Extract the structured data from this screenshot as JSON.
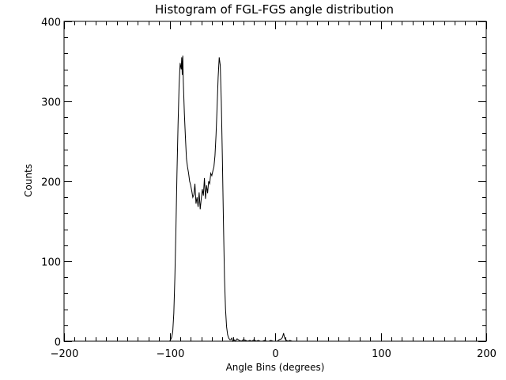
{
  "chart_data": {
    "type": "line",
    "title": "Histogram of FGL-FGS angle distribution",
    "xlabel": "Angle Bins (degrees)",
    "ylabel": "Counts",
    "xlim": [
      -200,
      200
    ],
    "ylim": [
      0,
      400
    ],
    "x_major_ticks": [
      -200,
      -100,
      0,
      100,
      200
    ],
    "x_tick_labels": [
      "−200",
      "−100",
      "0",
      "100",
      "200"
    ],
    "x_minor_step": 10,
    "y_major_ticks": [
      0,
      100,
      200,
      300,
      400
    ],
    "y_tick_labels": [
      "0",
      "100",
      "200",
      "300",
      "400"
    ],
    "y_minor_step": 20,
    "grid": false,
    "legend": "none",
    "series_color": "#000000",
    "x": [
      -200,
      -110,
      -100,
      -99,
      -98,
      -97,
      -96,
      -95,
      -94,
      -93,
      -92,
      -91,
      -90,
      -89,
      -88.5,
      -88,
      -87.5,
      -87,
      -86,
      -85,
      -84,
      -83,
      -82,
      -81,
      -80,
      -79,
      -78,
      -77,
      -76,
      -75,
      -74,
      -73,
      -72,
      -71,
      -70,
      -69,
      -68,
      -67,
      -66,
      -65,
      -64,
      -63,
      -62,
      -61,
      -60,
      -59,
      -58,
      -57,
      -56,
      -55,
      -54,
      -53,
      -52,
      -51,
      -50,
      -49,
      -48,
      -47,
      -46,
      -45,
      -44,
      -43,
      -42,
      -41,
      -40,
      -39,
      -38,
      -36,
      -34,
      -32,
      -30,
      -28,
      -26,
      -24,
      -22,
      -20,
      -18,
      -16,
      -14,
      -12,
      -10,
      -8,
      -6,
      -4,
      -2,
      0,
      2,
      4,
      6,
      7,
      8,
      9,
      10,
      11,
      12,
      14,
      16,
      20,
      30,
      50,
      100,
      200
    ],
    "y": [
      0,
      0,
      0,
      2,
      5,
      12,
      35,
      80,
      140,
      210,
      270,
      320,
      348,
      340,
      355,
      333,
      357,
      325,
      285,
      255,
      228,
      218,
      210,
      200,
      195,
      188,
      180,
      183,
      197,
      172,
      180,
      168,
      186,
      165,
      178,
      190,
      182,
      204,
      178,
      195,
      185,
      200,
      197,
      210,
      207,
      213,
      218,
      232,
      258,
      292,
      330,
      355,
      345,
      300,
      230,
      150,
      80,
      40,
      18,
      8,
      4,
      2,
      2,
      4,
      0,
      2,
      0,
      3,
      1,
      0,
      2,
      1,
      0,
      1,
      0,
      2,
      0,
      1,
      0,
      0,
      1,
      0,
      0,
      1,
      0,
      0,
      0,
      2,
      3,
      5,
      10,
      4,
      2,
      1,
      0,
      1,
      0,
      0,
      0,
      0,
      0,
      0
    ]
  }
}
